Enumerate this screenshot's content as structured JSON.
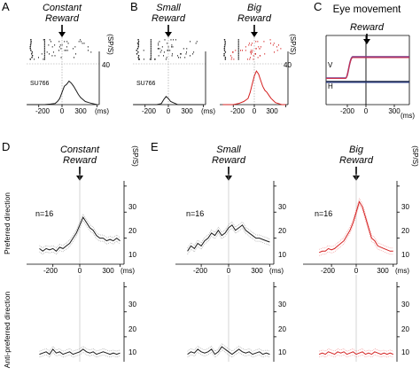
{
  "colors": {
    "black": "#1a1a1a",
    "red": "#d42020",
    "sem_black": "#9a9a9a",
    "sem_red": "#f08a8a",
    "eye_purple": "#7b3c8a",
    "eye_red": "#d0304a",
    "eye_dark": "#1f2a44",
    "eye_blue": "#2e3f90"
  },
  "top": {
    "panels": [
      {
        "letter": "A",
        "title_line1": "Constant",
        "title_line2": "Reward",
        "cell_id": "SU766",
        "color": "#1a1a1a",
        "x_ticks": [
          "-200",
          "0",
          "300"
        ],
        "x_unit": "(ms)",
        "y_max": "40",
        "y_unit": "(SP/S)"
      },
      {
        "letter": "B",
        "title_line1": "Small",
        "title_line2": "Reward",
        "cell_id": "SU766",
        "color": "#1a1a1a",
        "x_ticks": [
          "-200",
          "0",
          "300"
        ],
        "x_unit": "(ms)",
        "y_max": "",
        "y_unit": ""
      },
      {
        "letter": "",
        "title_line1": "Big",
        "title_line2": "Reward",
        "cell_id": "",
        "color": "#d42020",
        "x_ticks": [
          "-200",
          "0",
          "300"
        ],
        "x_unit": "(ms)",
        "y_max": "40",
        "y_unit": "(SP/S)"
      }
    ],
    "eye": {
      "letter": "C",
      "title": "Eye movement",
      "marker": "Reward",
      "trace_v": "V",
      "trace_h": "H",
      "x_ticks": [
        "-200",
        "0",
        "300"
      ],
      "x_unit": "(ms)"
    }
  },
  "bottom": {
    "panels": [
      {
        "letter": "D",
        "title_line1": "Constant",
        "title_line2": "Reward",
        "color": "#1a1a1a",
        "n_label": "n=16",
        "x_ticks": [
          "-200",
          "0",
          "300"
        ],
        "x_unit": "(ms)",
        "y_ticks_top": [
          "30",
          "20",
          "10"
        ],
        "y_ticks_bottom": [
          "30",
          "20",
          "10"
        ],
        "y_unit": "(SP/S)"
      },
      {
        "letter": "E",
        "title_line1": "Small",
        "title_line2": "Reward",
        "color": "#1a1a1a",
        "n_label": "n=16",
        "x_ticks": [
          "-200",
          "0",
          "300"
        ],
        "x_unit": "(ms)",
        "y_ticks_top": [
          "30",
          "20",
          "10"
        ],
        "y_ticks_bottom": [
          "30",
          "20",
          "10"
        ],
        "y_unit": ""
      },
      {
        "letter": "",
        "title_line1": "Big",
        "title_line2": "Reward",
        "color": "#d42020",
        "n_label": "n=16",
        "x_ticks": [
          "-200",
          "0",
          "300"
        ],
        "x_unit": "(ms)",
        "y_ticks_top": [
          "30",
          "20",
          "10"
        ],
        "y_ticks_bottom": [
          "30",
          "20",
          "10"
        ],
        "y_unit": "(SP/S)"
      }
    ],
    "row_labels": [
      "Preferred direction",
      "Anti-preferred direction"
    ]
  },
  "chart_data": [
    {
      "type": "line",
      "panel": "A",
      "title": "Constant Reward",
      "xlabel": "(ms)",
      "ylabel": "(SP/S)",
      "ylim": [
        0,
        40
      ],
      "x": [
        -300,
        -250,
        -200,
        -150,
        -100,
        -60,
        -40,
        -20,
        0,
        20,
        40,
        60,
        80,
        100,
        120,
        140,
        160,
        180,
        200,
        230,
        260,
        300
      ],
      "series": [
        {
          "values": [
            0,
            0,
            0,
            0,
            0.5,
            1,
            3,
            6,
            12,
            18,
            20,
            23,
            21,
            18,
            14,
            10,
            7,
            5,
            3,
            2,
            1,
            0
          ]
        }
      ]
    },
    {
      "type": "line",
      "panel": "B",
      "title": "Small Reward",
      "xlabel": "(ms)",
      "ylim": [
        0,
        40
      ],
      "x": [
        -300,
        -250,
        -200,
        -150,
        -100,
        -60,
        -40,
        -20,
        0,
        20,
        40,
        60,
        80,
        100,
        120,
        140,
        160,
        180,
        200,
        230,
        260,
        300
      ],
      "series": [
        {
          "values": [
            0,
            0,
            0,
            0,
            0,
            1,
            5,
            8,
            6,
            3,
            2,
            1,
            0,
            0,
            0,
            0,
            0,
            0,
            0,
            0,
            0,
            0
          ]
        }
      ]
    },
    {
      "type": "line",
      "panel": "Big Reward (top)",
      "title": "Big Reward",
      "xlabel": "(ms)",
      "ylabel": "(SP/S)",
      "ylim": [
        0,
        40
      ],
      "x": [
        -300,
        -250,
        -200,
        -150,
        -100,
        -60,
        -40,
        -20,
        0,
        20,
        40,
        60,
        80,
        100,
        120,
        140,
        160,
        180,
        200,
        230,
        260,
        300
      ],
      "series": [
        {
          "values": [
            0,
            0,
            0,
            1,
            3,
            6,
            12,
            20,
            28,
            33,
            30,
            24,
            18,
            14,
            12,
            9,
            6,
            4,
            2,
            1,
            0,
            0
          ]
        }
      ]
    },
    {
      "type": "line",
      "panel": "D preferred",
      "title": "Constant Reward",
      "xlabel": "(ms)",
      "ylabel": "(SP/S)",
      "ylim": [
        0,
        30
      ],
      "x": [
        -300,
        -275,
        -250,
        -225,
        -200,
        -175,
        -150,
        -125,
        -100,
        -75,
        -50,
        -25,
        0,
        25,
        50,
        75,
        100,
        125,
        150,
        175,
        200,
        225,
        250,
        275,
        300
      ],
      "series": [
        {
          "values": [
            6,
            5,
            6,
            5.5,
            6,
            5,
            6.5,
            6,
            7,
            8,
            10,
            12,
            15,
            18,
            16,
            14,
            13,
            11,
            10,
            10,
            9,
            9.5,
            9,
            10,
            9
          ]
        }
      ]
    },
    {
      "type": "line",
      "panel": "E preferred",
      "title": "Small Reward",
      "xlabel": "(ms)",
      "ylim": [
        0,
        30
      ],
      "x": [
        -300,
        -275,
        -250,
        -225,
        -200,
        -175,
        -150,
        -125,
        -100,
        -75,
        -50,
        -25,
        0,
        25,
        50,
        75,
        100,
        125,
        150,
        175,
        200,
        225,
        250,
        275,
        300
      ],
      "series": [
        {
          "values": [
            5,
            7,
            6,
            8,
            7,
            9,
            10,
            12,
            11,
            13,
            11,
            12,
            14,
            15,
            13,
            14,
            15,
            13,
            12,
            11,
            10,
            10,
            9.5,
            9,
            8.5
          ]
        }
      ]
    },
    {
      "type": "line",
      "panel": "Big preferred",
      "title": "Big Reward",
      "xlabel": "(ms)",
      "ylabel": "(SP/S)",
      "ylim": [
        0,
        30
      ],
      "x": [
        -300,
        -275,
        -250,
        -225,
        -200,
        -175,
        -150,
        -125,
        -100,
        -75,
        -50,
        -25,
        0,
        25,
        50,
        75,
        100,
        125,
        150,
        175,
        200,
        225,
        250,
        275,
        300
      ],
      "series": [
        {
          "values": [
            4.5,
            5,
            5,
            6,
            5.5,
            6,
            7,
            8,
            9,
            11,
            13,
            16,
            20,
            24,
            22,
            18,
            14,
            10,
            9,
            7,
            6.5,
            6,
            5.5,
            5,
            5
          ]
        }
      ]
    },
    {
      "type": "line",
      "panel": "D anti-preferred",
      "xlabel": "(ms)",
      "ylabel": "(SP/S)",
      "ylim": [
        0,
        30
      ],
      "x": [
        -300,
        -275,
        -250,
        -225,
        -200,
        -175,
        -150,
        -125,
        -100,
        -75,
        -50,
        -25,
        0,
        25,
        50,
        75,
        100,
        125,
        150,
        175,
        200,
        225,
        250,
        275,
        300
      ],
      "series": [
        {
          "values": [
            3,
            3.5,
            4,
            3,
            5,
            3.5,
            4,
            3,
            3.5,
            4,
            3,
            3.5,
            4,
            5,
            4,
            3.5,
            4,
            3,
            3.5,
            4,
            3.5,
            3,
            3.5,
            3,
            3.5
          ]
        }
      ]
    },
    {
      "type": "line",
      "panel": "E anti-preferred",
      "xlabel": "(ms)",
      "ylim": [
        0,
        30
      ],
      "x": [
        -300,
        -275,
        -250,
        -225,
        -200,
        -175,
        -150,
        -125,
        -100,
        -75,
        -50,
        -25,
        0,
        25,
        50,
        75,
        100,
        125,
        150,
        175,
        200,
        225,
        250,
        275,
        300
      ],
      "series": [
        {
          "values": [
            3,
            4,
            3.5,
            5,
            4,
            3.5,
            4,
            5,
            3,
            4,
            6,
            5,
            4,
            3,
            4,
            5,
            4,
            3.5,
            4,
            3,
            3.5,
            4,
            3,
            3.5,
            3
          ]
        }
      ]
    },
    {
      "type": "line",
      "panel": "Big anti-preferred",
      "xlabel": "(ms)",
      "ylabel": "(SP/S)",
      "ylim": [
        0,
        30
      ],
      "x": [
        -300,
        -275,
        -250,
        -225,
        -200,
        -175,
        -150,
        -125,
        -100,
        -75,
        -50,
        -25,
        0,
        25,
        50,
        75,
        100,
        125,
        150,
        175,
        200,
        225,
        250,
        275,
        300
      ],
      "series": [
        {
          "values": [
            3,
            3.5,
            3,
            4,
            3.5,
            3,
            4,
            3.5,
            4,
            3,
            3.5,
            4,
            3,
            3.5,
            4,
            3,
            3.5,
            3,
            4,
            3.5,
            3,
            3.5,
            3,
            3.5,
            3
          ]
        }
      ]
    }
  ]
}
